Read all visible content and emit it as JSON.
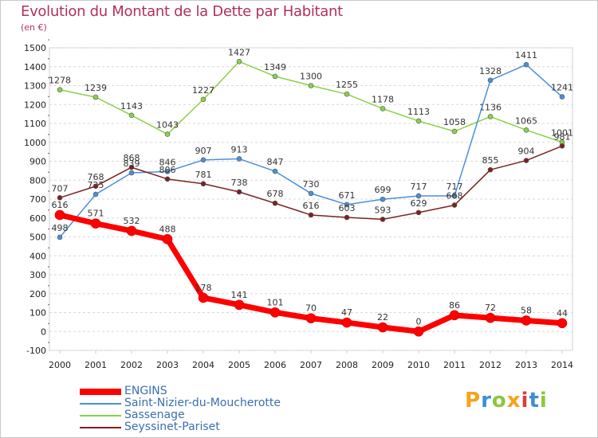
{
  "title": "Evolution du Montant de la Dette par Habitant",
  "subtitle": "(en €)",
  "logo": {
    "text": "Proxiti",
    "letters": [
      {
        "ch": "P",
        "color": "#f7a21b"
      },
      {
        "ch": "r",
        "color": "#3a8fd8"
      },
      {
        "ch": "o",
        "color": "#8cc63f"
      },
      {
        "ch": "x",
        "color": "#f7a21b"
      },
      {
        "ch": "i",
        "color": "#e23b3b"
      },
      {
        "ch": "t",
        "color": "#3a8fd8"
      },
      {
        "ch": "i",
        "color": "#8cc63f"
      }
    ]
  },
  "chart_data": {
    "type": "line",
    "title": "Evolution du Montant de la Dette par Habitant",
    "subtitle": "(en €)",
    "x": [
      2000,
      2001,
      2002,
      2003,
      2004,
      2005,
      2006,
      2007,
      2008,
      2009,
      2010,
      2011,
      2012,
      2013,
      2014
    ],
    "ylim": [
      -100,
      1500
    ],
    "ytick_step": 100,
    "grid": "horizontal-dashed",
    "legend_position": "bottom-left",
    "series": [
      {
        "name": "ENGINS",
        "color": "#ff0000",
        "emphasis": true,
        "values": [
          616,
          571,
          532,
          488,
          178,
          141,
          101,
          70,
          47,
          22,
          0,
          86,
          72,
          58,
          44
        ],
        "labels": [
          "616",
          "571",
          "532",
          "488",
          "178",
          "141",
          "101",
          "70",
          "47",
          "22",
          "0",
          "86",
          "72",
          "58",
          "44"
        ]
      },
      {
        "name": "Saint-Nizier-du-Moucherotte",
        "color": "#4a90d9",
        "values": [
          498,
          725,
          839,
          846,
          907,
          913,
          847,
          730,
          671,
          699,
          717,
          717,
          1328,
          1411,
          1241
        ],
        "labels": [
          "498",
          "725",
          "839",
          "846",
          "907",
          "913",
          "847",
          "730",
          "671",
          "699",
          "717",
          "717",
          "1328",
          "1411",
          "1241"
        ]
      },
      {
        "name": "Sassenage",
        "color": "#8cd04a",
        "values": [
          1278,
          1239,
          1143,
          1043,
          1227,
          1427,
          1349,
          1300,
          1255,
          1178,
          1113,
          1058,
          1136,
          1065,
          1001
        ],
        "labels": [
          "1278",
          "1239",
          "1143",
          "1043",
          "1227",
          "1427",
          "1349",
          "1300",
          "1255",
          "1178",
          "1113",
          "1058",
          "1136",
          "1065",
          "1001"
        ]
      },
      {
        "name": "Seyssinet-Pariset",
        "color": "#7a2222",
        "values": [
          707,
          768,
          868,
          806,
          781,
          738,
          678,
          616,
          603,
          593,
          629,
          668,
          855,
          904,
          981
        ],
        "labels": [
          "707",
          "768",
          "868",
          "806",
          "781",
          "738",
          "678",
          "616",
          "603",
          "593",
          "629",
          "668",
          "855",
          "904",
          "981"
        ]
      }
    ]
  }
}
